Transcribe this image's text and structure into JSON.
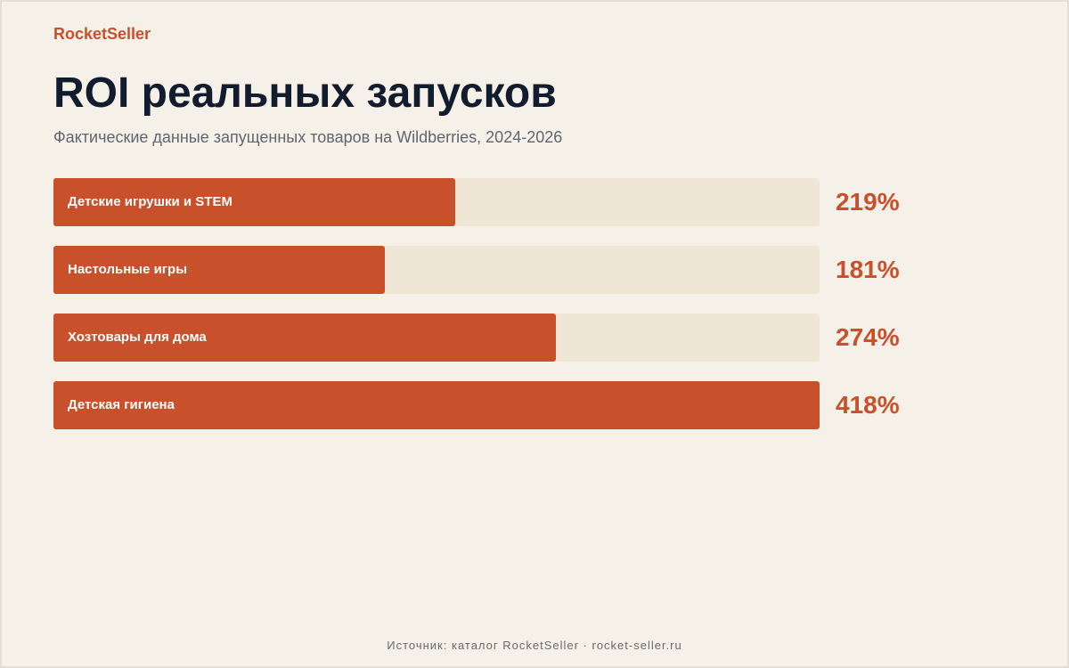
{
  "brand": "RocketSeller",
  "colors": {
    "accent": "#c8502a",
    "track": "#efe6d6",
    "background": "#f5f0e8",
    "title": "#111c2e"
  },
  "chart_data": {
    "type": "bar",
    "orientation": "horizontal",
    "title": "ROI реальных запусков",
    "subtitle": "Фактические данные запущенных товаров на Wildberries, 2024-2026",
    "categories": [
      "Детские игрушки и STEM",
      "Настольные игры",
      "Хозтовары для дома",
      "Детская гигиена"
    ],
    "values": [
      219,
      181,
      274,
      418
    ],
    "value_labels": [
      "219%",
      "181%",
      "274%",
      "418%"
    ],
    "unit": "%",
    "xlim": [
      0,
      418
    ],
    "grid": false
  },
  "footer": "Источник: каталог RocketSeller · rocket-seller.ru"
}
